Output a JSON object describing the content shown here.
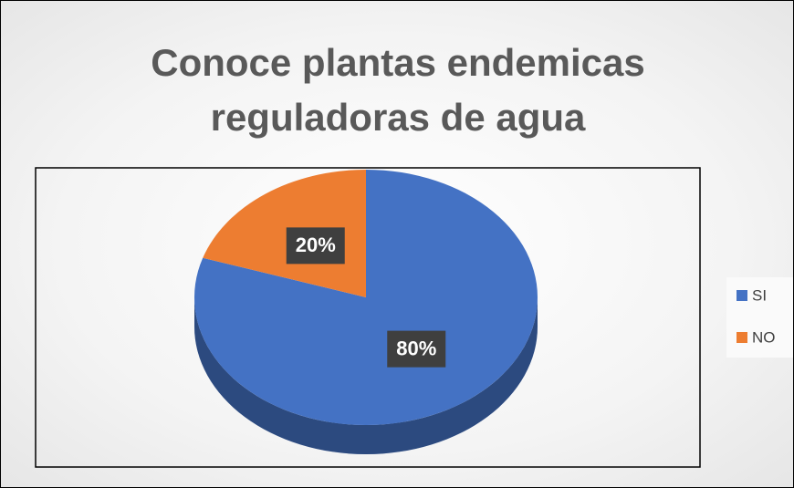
{
  "chart_data": {
    "type": "pie",
    "title": "Conoce plantas endemicas reguladoras de agua",
    "categories": [
      "SI",
      "NO"
    ],
    "values": [
      80,
      20
    ],
    "value_labels": [
      "80%",
      "20%"
    ],
    "colors": [
      "#4472c4",
      "#ed7d31"
    ],
    "legend": "right"
  }
}
